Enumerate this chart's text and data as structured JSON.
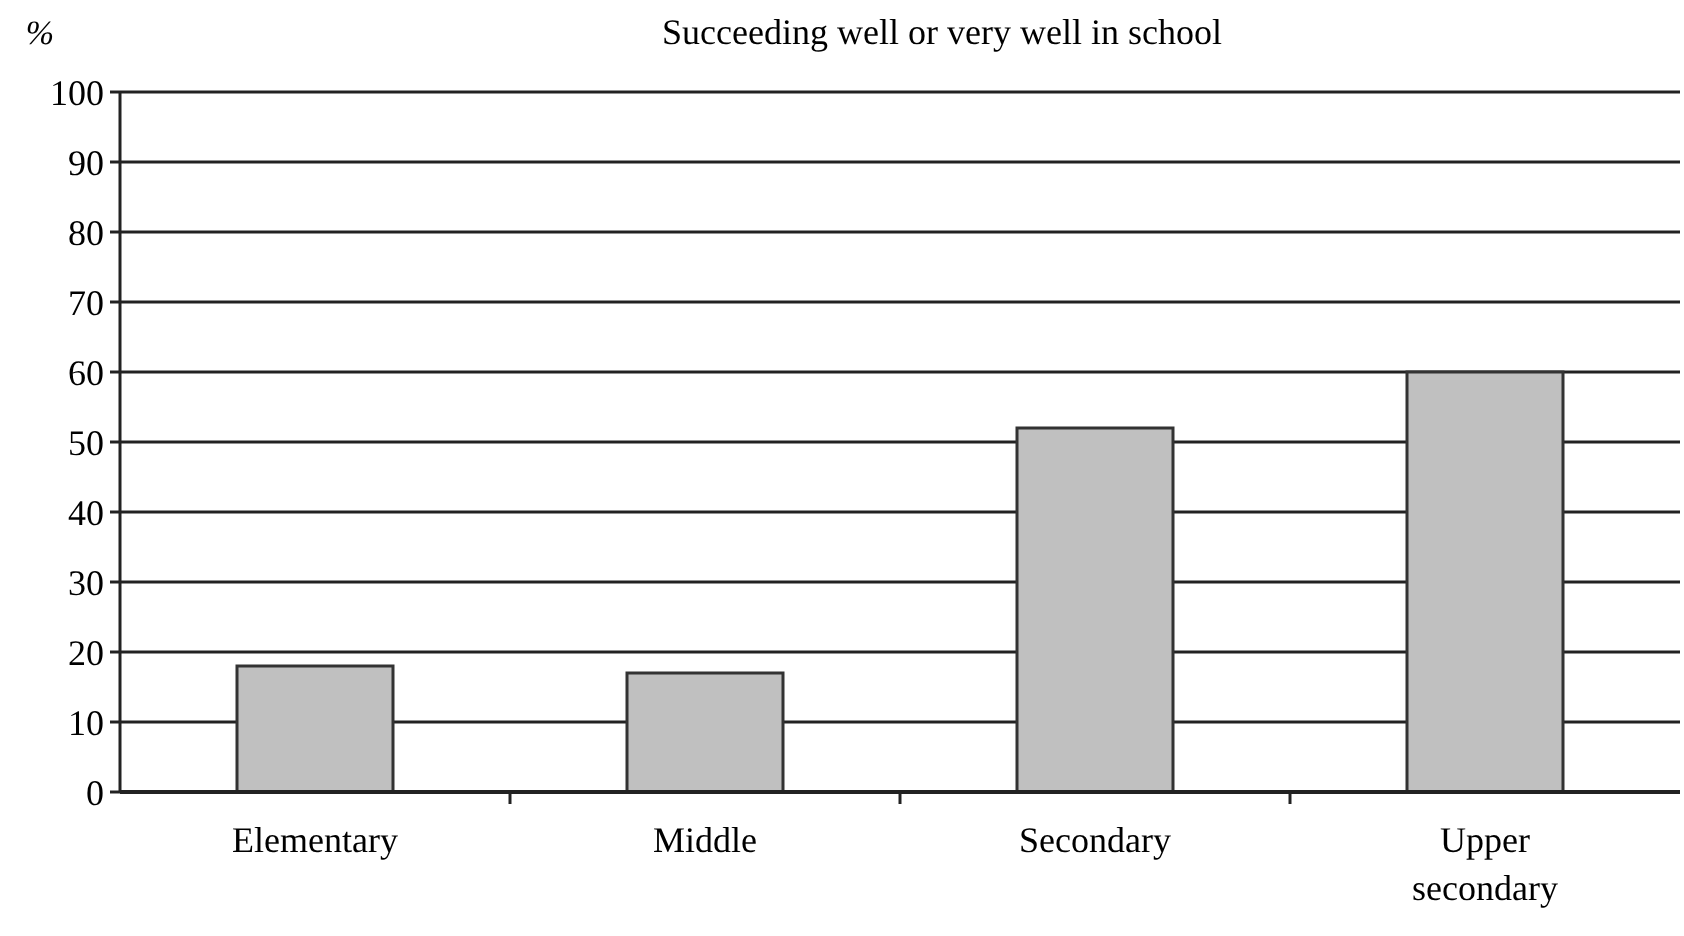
{
  "chart_data": {
    "type": "bar",
    "title": "Succeeding well or very well in school",
    "ylabel": "%",
    "categories": [
      "Elementary",
      "Middle",
      "Secondary",
      "Upper secondary"
    ],
    "values": [
      18,
      17,
      52,
      60
    ],
    "color": "#c0c0c0",
    "ylim": [
      0,
      100
    ],
    "yticks": [
      0,
      10,
      20,
      30,
      40,
      50,
      60,
      70,
      80,
      90,
      100
    ],
    "grid": "y"
  }
}
